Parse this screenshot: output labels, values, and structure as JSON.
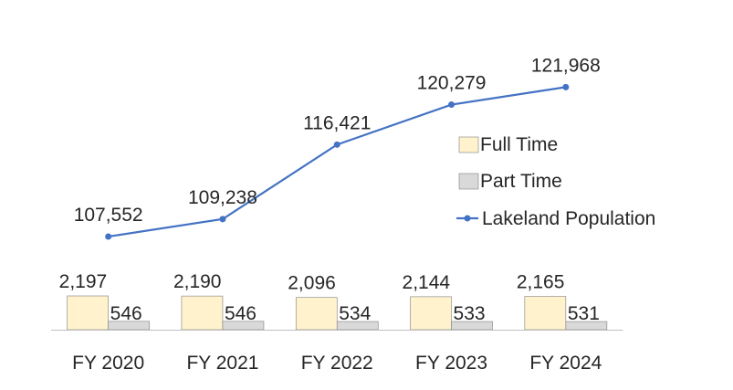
{
  "chart_data": {
    "type": "bar",
    "categories": [
      "FY 2020",
      "FY 2021",
      "FY 2022",
      "FY 2023",
      "FY 2024"
    ],
    "series": [
      {
        "name": "Full Time",
        "type": "bar",
        "values": [
          2197,
          2190,
          2096,
          2144,
          2165
        ],
        "labels": [
          "2,197",
          "2,190",
          "2,096",
          "2,144",
          "2,165"
        ],
        "color": "#FFF2CC"
      },
      {
        "name": "Part Time",
        "type": "bar",
        "values": [
          546,
          546,
          534,
          533,
          531
        ],
        "labels": [
          "546",
          "546",
          "534",
          "533",
          "531"
        ],
        "color": "#D9D9D9"
      },
      {
        "name": "Lakeland Population",
        "type": "line",
        "values": [
          107552,
          109238,
          116421,
          120279,
          121968
        ],
        "labels": [
          "107,552",
          "109,238",
          "116,421",
          "120,279",
          "121,968"
        ],
        "color": "#4472C4"
      }
    ],
    "legend_position": "right",
    "grid": false
  }
}
